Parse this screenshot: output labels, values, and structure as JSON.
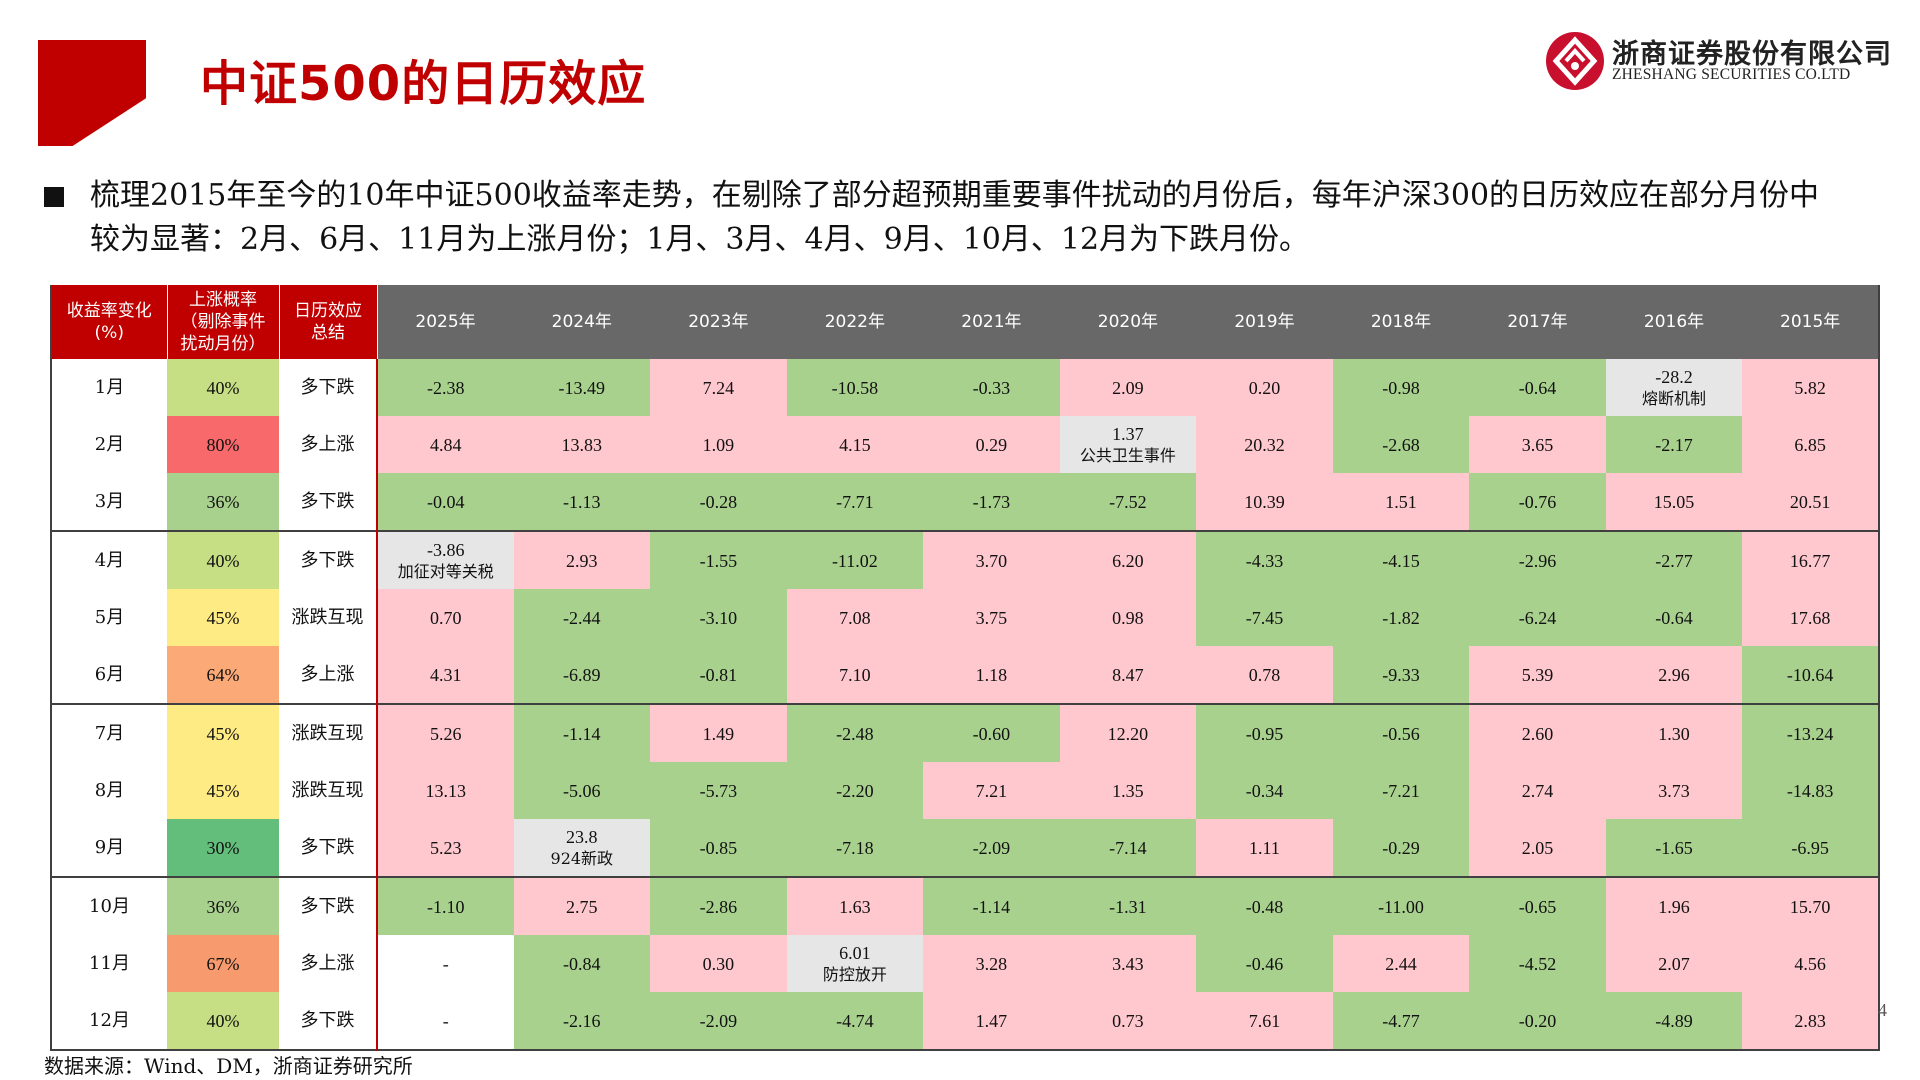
{
  "header": {
    "title": "中证500的日历效应",
    "company_cn": "浙商证券股份有限公司",
    "company_en": "ZHESHANG SECURITIES CO.LTD",
    "brand_color": "#c00000"
  },
  "summary": "梳理2015年至今的10年中证500收益率走势，在剔除了部分超预期重要事件扰动的月份后，每年沪深300的日历效应在部分月份中较为显著：2月、6月、11月为上涨月份；1月、3月、4月、9月、10月、12月为下跌月份。",
  "table": {
    "header": {
      "col1_line1": "收益率变化",
      "col1_line2": "(%)",
      "col2_line1": "上涨概率",
      "col2_line2": "（剔除事件",
      "col2_line3": "扰动月份）",
      "col3_line1": "日历效应",
      "col3_line2": "总结",
      "years": [
        "2025年",
        "2024年",
        "2023年",
        "2022年",
        "2021年",
        "2020年",
        "2019年",
        "2018年",
        "2017年",
        "2016年",
        "2015年"
      ]
    },
    "colors": {
      "positive": "#ffc7ce",
      "negative": "#a9d18e",
      "event": "#e7e6e6"
    },
    "rows": [
      {
        "month": "1月",
        "prob": "40%",
        "prob_color": "#c6df84",
        "summary": "多下跌",
        "values": [
          "-2.38",
          "-13.49",
          "7.24",
          "-10.58",
          "-0.33",
          "2.09",
          "0.20",
          "-0.98",
          "-0.64",
          "-28.2",
          "5.82"
        ],
        "types": [
          "neg",
          "neg",
          "pos",
          "neg",
          "neg",
          "pos",
          "pos",
          "neg",
          "neg",
          "evt",
          "pos"
        ],
        "notes": [
          "",
          "",
          "",
          "",
          "",
          "",
          "",
          "",
          "",
          "熔断机制",
          ""
        ]
      },
      {
        "month": "2月",
        "prob": "80%",
        "prob_color": "#f8696b",
        "summary": "多上涨",
        "values": [
          "4.84",
          "13.83",
          "1.09",
          "4.15",
          "0.29",
          "1.37",
          "20.32",
          "-2.68",
          "3.65",
          "-2.17",
          "6.85"
        ],
        "types": [
          "pos",
          "pos",
          "pos",
          "pos",
          "pos",
          "evt",
          "pos",
          "neg",
          "pos",
          "neg",
          "pos"
        ],
        "notes": [
          "",
          "",
          "",
          "",
          "",
          "公共卫生事件",
          "",
          "",
          "",
          "",
          ""
        ]
      },
      {
        "month": "3月",
        "prob": "36%",
        "prob_color": "#a9d18e",
        "summary": "多下跌",
        "values": [
          "-0.04",
          "-1.13",
          "-0.28",
          "-7.71",
          "-1.73",
          "-7.52",
          "10.39",
          "1.51",
          "-0.76",
          "15.05",
          "20.51"
        ],
        "types": [
          "neg",
          "neg",
          "neg",
          "neg",
          "neg",
          "neg",
          "pos",
          "pos",
          "neg",
          "pos",
          "pos"
        ],
        "notes": [
          "",
          "",
          "",
          "",
          "",
          "",
          "",
          "",
          "",
          "",
          ""
        ]
      },
      {
        "month": "4月",
        "prob": "40%",
        "prob_color": "#c6df84",
        "summary": "多下跌",
        "values": [
          "-3.86",
          "2.93",
          "-1.55",
          "-11.02",
          "3.70",
          "6.20",
          "-4.33",
          "-4.15",
          "-2.96",
          "-2.77",
          "16.77"
        ],
        "types": [
          "evt",
          "pos",
          "neg",
          "neg",
          "pos",
          "pos",
          "neg",
          "neg",
          "neg",
          "neg",
          "pos"
        ],
        "notes": [
          "加征对等关税",
          "",
          "",
          "",
          "",
          "",
          "",
          "",
          "",
          "",
          ""
        ]
      },
      {
        "month": "5月",
        "prob": "45%",
        "prob_color": "#ffeb84",
        "summary": "涨跌互现",
        "values": [
          "0.70",
          "-2.44",
          "-3.10",
          "7.08",
          "3.75",
          "0.98",
          "-7.45",
          "-1.82",
          "-6.24",
          "-0.64",
          "17.68"
        ],
        "types": [
          "pos",
          "neg",
          "neg",
          "pos",
          "pos",
          "pos",
          "neg",
          "neg",
          "neg",
          "neg",
          "pos"
        ],
        "notes": [
          "",
          "",
          "",
          "",
          "",
          "",
          "",
          "",
          "",
          "",
          ""
        ]
      },
      {
        "month": "6月",
        "prob": "64%",
        "prob_color": "#fba977",
        "summary": "多上涨",
        "values": [
          "4.31",
          "-6.89",
          "-0.81",
          "7.10",
          "1.18",
          "8.47",
          "0.78",
          "-9.33",
          "5.39",
          "2.96",
          "-10.64"
        ],
        "types": [
          "pos",
          "neg",
          "neg",
          "pos",
          "pos",
          "pos",
          "pos",
          "neg",
          "pos",
          "pos",
          "neg"
        ],
        "notes": [
          "",
          "",
          "",
          "",
          "",
          "",
          "",
          "",
          "",
          "",
          ""
        ]
      },
      {
        "month": "7月",
        "prob": "45%",
        "prob_color": "#ffeb84",
        "summary": "涨跌互现",
        "values": [
          "5.26",
          "-1.14",
          "1.49",
          "-2.48",
          "-0.60",
          "12.20",
          "-0.95",
          "-0.56",
          "2.60",
          "1.30",
          "-13.24"
        ],
        "types": [
          "pos",
          "neg",
          "pos",
          "neg",
          "neg",
          "pos",
          "neg",
          "neg",
          "pos",
          "pos",
          "neg"
        ],
        "notes": [
          "",
          "",
          "",
          "",
          "",
          "",
          "",
          "",
          "",
          "",
          ""
        ]
      },
      {
        "month": "8月",
        "prob": "45%",
        "prob_color": "#ffeb84",
        "summary": "涨跌互现",
        "values": [
          "13.13",
          "-5.06",
          "-5.73",
          "-2.20",
          "7.21",
          "1.35",
          "-0.34",
          "-7.21",
          "2.74",
          "3.73",
          "-14.83"
        ],
        "types": [
          "pos",
          "neg",
          "neg",
          "neg",
          "pos",
          "pos",
          "neg",
          "neg",
          "pos",
          "pos",
          "neg"
        ],
        "notes": [
          "",
          "",
          "",
          "",
          "",
          "",
          "",
          "",
          "",
          "",
          ""
        ]
      },
      {
        "month": "9月",
        "prob": "30%",
        "prob_color": "#63be7b",
        "summary": "多下跌",
        "values": [
          "5.23",
          "23.8",
          "-0.85",
          "-7.18",
          "-2.09",
          "-7.14",
          "1.11",
          "-0.29",
          "2.05",
          "-1.65",
          "-6.95"
        ],
        "types": [
          "pos",
          "evt",
          "neg",
          "neg",
          "neg",
          "neg",
          "pos",
          "neg",
          "pos",
          "neg",
          "neg"
        ],
        "notes": [
          "",
          "924新政",
          "",
          "",
          "",
          "",
          "",
          "",
          "",
          "",
          ""
        ]
      },
      {
        "month": "10月",
        "prob": "36%",
        "prob_color": "#a9d18e",
        "summary": "多下跌",
        "values": [
          "-1.10",
          "2.75",
          "-2.86",
          "1.63",
          "-1.14",
          "-1.31",
          "-0.48",
          "-11.00",
          "-0.65",
          "1.96",
          "15.70"
        ],
        "types": [
          "neg",
          "pos",
          "neg",
          "pos",
          "neg",
          "neg",
          "neg",
          "neg",
          "neg",
          "pos",
          "pos"
        ],
        "notes": [
          "",
          "",
          "",
          "",
          "",
          "",
          "",
          "",
          "",
          "",
          ""
        ]
      },
      {
        "month": "11月",
        "prob": "67%",
        "prob_color": "#f79a6e",
        "summary": "多上涨",
        "values": [
          "-",
          "-0.84",
          "0.30",
          "6.01",
          "3.28",
          "3.43",
          "-0.46",
          "2.44",
          "-4.52",
          "2.07",
          "4.56"
        ],
        "types": [
          "blank",
          "neg",
          "pos",
          "evt",
          "pos",
          "pos",
          "neg",
          "pos",
          "neg",
          "pos",
          "pos"
        ],
        "notes": [
          "",
          "",
          "",
          "防控放开",
          "",
          "",
          "",
          "",
          "",
          "",
          ""
        ]
      },
      {
        "month": "12月",
        "prob": "40%",
        "prob_color": "#c6df84",
        "summary": "多下跌",
        "values": [
          "-",
          "-2.16",
          "-2.09",
          "-4.74",
          "1.47",
          "0.73",
          "7.61",
          "-4.77",
          "-0.20",
          "-4.89",
          "2.83"
        ],
        "types": [
          "blank",
          "neg",
          "neg",
          "neg",
          "pos",
          "pos",
          "pos",
          "neg",
          "neg",
          "neg",
          "pos"
        ],
        "notes": [
          "",
          "",
          "",
          "",
          "",
          "",
          "",
          "",
          "",
          "",
          ""
        ]
      }
    ]
  },
  "footer": {
    "source": "数据来源：Wind、DM，浙商证券研究所",
    "page": "4"
  }
}
